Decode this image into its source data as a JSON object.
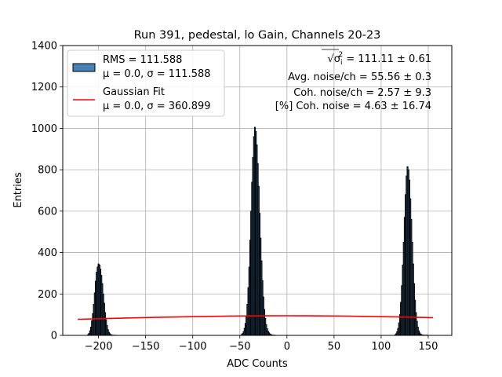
{
  "chart_data": {
    "type": "bar",
    "title": "Run 391, pedestal, lo Gain, Channels 20-23",
    "xlabel": "ADC Counts",
    "ylabel": "Entries",
    "xlim": [
      -238,
      175
    ],
    "ylim": [
      0,
      1400
    ],
    "xticks": [
      -200,
      -150,
      -100,
      -50,
      0,
      50,
      100,
      150
    ],
    "xtick_labels": [
      "−200",
      "−150",
      "−100",
      "−50",
      "0",
      "50",
      "100",
      "150"
    ],
    "yticks": [
      0,
      200,
      400,
      600,
      800,
      1000,
      1200,
      1400
    ],
    "ytick_labels": [
      "0",
      "200",
      "400",
      "600",
      "800",
      "1000",
      "1200",
      "1400"
    ],
    "grid": true,
    "legend_placement": "top-left",
    "series": [
      {
        "name": "RMS = 111.588",
        "name_line2": "μ = 0.0, σ = 111.588",
        "kind": "histogram",
        "color": "#4682b4",
        "edgecolor": "#000000",
        "bin_width": 1,
        "x": [
          -211,
          -210,
          -209,
          -208,
          -207,
          -206,
          -205,
          -204,
          -203,
          -202,
          -201,
          -200,
          -199,
          -198,
          -197,
          -196,
          -195,
          -194,
          -193,
          -192,
          -191,
          -190,
          -189,
          -188,
          -187,
          -186,
          -185,
          -184,
          -183,
          -182,
          -48,
          -47,
          -46,
          -45,
          -44,
          -43,
          -42,
          -41,
          -40,
          -39,
          -38,
          -37,
          -36,
          -35,
          -34,
          -33,
          -32,
          -31,
          -30,
          -29,
          -28,
          -27,
          -26,
          -25,
          -24,
          -23,
          -22,
          -21,
          -20,
          -19,
          -18,
          -17,
          -16,
          -15,
          -14,
          -13,
          115,
          116,
          117,
          118,
          119,
          120,
          121,
          122,
          123,
          124,
          125,
          126,
          127,
          128,
          129,
          130,
          131,
          132,
          133,
          134,
          135,
          136,
          137,
          138,
          139,
          140,
          141,
          142,
          143,
          144,
          145,
          146,
          147,
          148,
          149
        ],
        "values": [
          4,
          10,
          22,
          40,
          70,
          105,
          150,
          205,
          262,
          305,
          330,
          345,
          340,
          320,
          290,
          250,
          200,
          155,
          110,
          75,
          48,
          28,
          15,
          8,
          4,
          2,
          1,
          1,
          0,
          1,
          4,
          9,
          18,
          34,
          58,
          95,
          150,
          230,
          330,
          460,
          600,
          740,
          860,
          960,
          1005,
          985,
          920,
          830,
          720,
          590,
          470,
          360,
          265,
          185,
          125,
          82,
          52,
          32,
          20,
          12,
          7,
          4,
          2,
          1,
          1,
          1,
          3,
          8,
          18,
          34,
          60,
          100,
          160,
          240,
          340,
          450,
          570,
          680,
          770,
          815,
          800,
          750,
          660,
          560,
          450,
          345,
          250,
          170,
          110,
          68,
          40,
          22,
          12,
          6,
          3,
          2,
          1,
          1,
          1,
          1,
          1
        ]
      },
      {
        "name": "Gaussian Fit",
        "name_line2": "μ = 0.0, σ = 360.899",
        "kind": "line",
        "color": "#ff0000",
        "x": [
          -222,
          -180,
          -140,
          -100,
          -60,
          -20,
          0,
          20,
          60,
          100,
          140,
          155
        ],
        "values": [
          77.7,
          82.8,
          87.0,
          90.5,
          93.1,
          94.6,
          94.8,
          94.6,
          93.1,
          90.5,
          87.0,
          85.5
        ]
      }
    ],
    "annotations": [
      {
        "prefix": "√σ",
        "sub": "i",
        "sup": "2",
        "suffix": " = 111.11 ± 0.61"
      },
      {
        "text": "Avg. noise/ch = 55.56 ± 0.3"
      },
      {
        "text": "Coh. noise/ch = 2.57 ± 9.3"
      },
      {
        "text": "[%] Coh. noise = 4.63 ± 16.74"
      }
    ]
  }
}
